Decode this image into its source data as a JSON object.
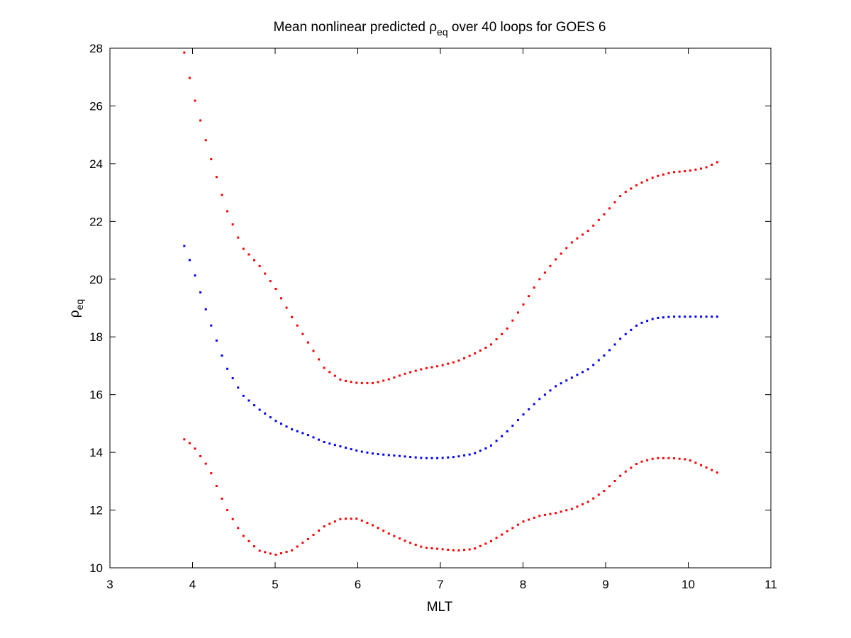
{
  "chart_data": {
    "type": "scatter",
    "title": {
      "prefix": "Mean nonlinear predicted ",
      "symbol": "ρ",
      "subscript": "eq",
      "suffix": " over 40 loops for GOES 6"
    },
    "xlabel": "MLT",
    "ylabel": {
      "symbol": "ρ",
      "subscript": "eq"
    },
    "xlim": [
      3,
      11
    ],
    "ylim": [
      10,
      28
    ],
    "xticks": [
      3,
      4,
      5,
      6,
      7,
      8,
      9,
      10,
      11
    ],
    "yticks": [
      10,
      12,
      14,
      16,
      18,
      20,
      22,
      24,
      26,
      28
    ],
    "xtick_labels": [
      "3",
      "4",
      "5",
      "6",
      "7",
      "8",
      "9",
      "10",
      "11"
    ],
    "ytick_labels": [
      "10",
      "12",
      "14",
      "16",
      "18",
      "20",
      "22",
      "24",
      "26",
      "28"
    ],
    "grid": false,
    "legend": "none",
    "colors": {
      "upper": "#ff0000",
      "mean": "#0000ff",
      "lower": "#ff0000"
    },
    "series": [
      {
        "id": "upper",
        "x": [
          3.9,
          4.0,
          4.2,
          4.4,
          4.6,
          4.8,
          5.0,
          5.2,
          5.4,
          5.6,
          5.8,
          6.0,
          6.2,
          6.4,
          6.6,
          6.8,
          7.0,
          7.2,
          7.4,
          7.6,
          7.8,
          8.0,
          8.2,
          8.4,
          8.6,
          8.8,
          9.0,
          9.2,
          9.4,
          9.6,
          9.8,
          10.0,
          10.2,
          10.35
        ],
        "y": [
          27.85,
          26.5,
          24.4,
          22.5,
          21.1,
          20.5,
          19.7,
          18.7,
          17.8,
          16.9,
          16.5,
          16.4,
          16.4,
          16.55,
          16.75,
          16.9,
          17.0,
          17.15,
          17.4,
          17.7,
          18.25,
          19.1,
          20.0,
          20.7,
          21.3,
          21.7,
          22.3,
          22.95,
          23.3,
          23.55,
          23.7,
          23.75,
          23.85,
          24.05
        ]
      },
      {
        "id": "mean",
        "x": [
          3.9,
          4.0,
          4.2,
          4.4,
          4.6,
          4.8,
          5.0,
          5.2,
          5.4,
          5.6,
          5.8,
          6.0,
          6.2,
          6.4,
          6.6,
          6.8,
          7.0,
          7.2,
          7.4,
          7.6,
          7.8,
          8.0,
          8.2,
          8.4,
          8.6,
          8.8,
          9.0,
          9.2,
          9.4,
          9.6,
          9.8,
          10.0,
          10.2,
          10.35
        ],
        "y": [
          21.15,
          20.4,
          18.6,
          17.0,
          16.0,
          15.5,
          15.1,
          14.8,
          14.6,
          14.35,
          14.2,
          14.05,
          13.95,
          13.9,
          13.85,
          13.8,
          13.8,
          13.85,
          13.95,
          14.2,
          14.7,
          15.3,
          15.85,
          16.3,
          16.6,
          16.9,
          17.4,
          18.0,
          18.45,
          18.65,
          18.7,
          18.7,
          18.7,
          18.7
        ]
      },
      {
        "id": "lower",
        "x": [
          3.9,
          4.0,
          4.2,
          4.4,
          4.6,
          4.8,
          5.0,
          5.2,
          5.4,
          5.6,
          5.8,
          6.0,
          6.2,
          6.4,
          6.6,
          6.8,
          7.0,
          7.2,
          7.4,
          7.6,
          7.8,
          8.0,
          8.2,
          8.4,
          8.6,
          8.8,
          9.0,
          9.2,
          9.4,
          9.6,
          9.8,
          10.0,
          10.2,
          10.35
        ],
        "y": [
          14.45,
          14.25,
          13.45,
          12.1,
          11.15,
          10.6,
          10.45,
          10.6,
          11.0,
          11.45,
          11.7,
          11.7,
          11.45,
          11.15,
          10.9,
          10.7,
          10.65,
          10.6,
          10.65,
          10.9,
          11.25,
          11.6,
          11.8,
          11.9,
          12.05,
          12.3,
          12.7,
          13.25,
          13.65,
          13.8,
          13.8,
          13.75,
          13.5,
          13.3
        ]
      }
    ]
  }
}
